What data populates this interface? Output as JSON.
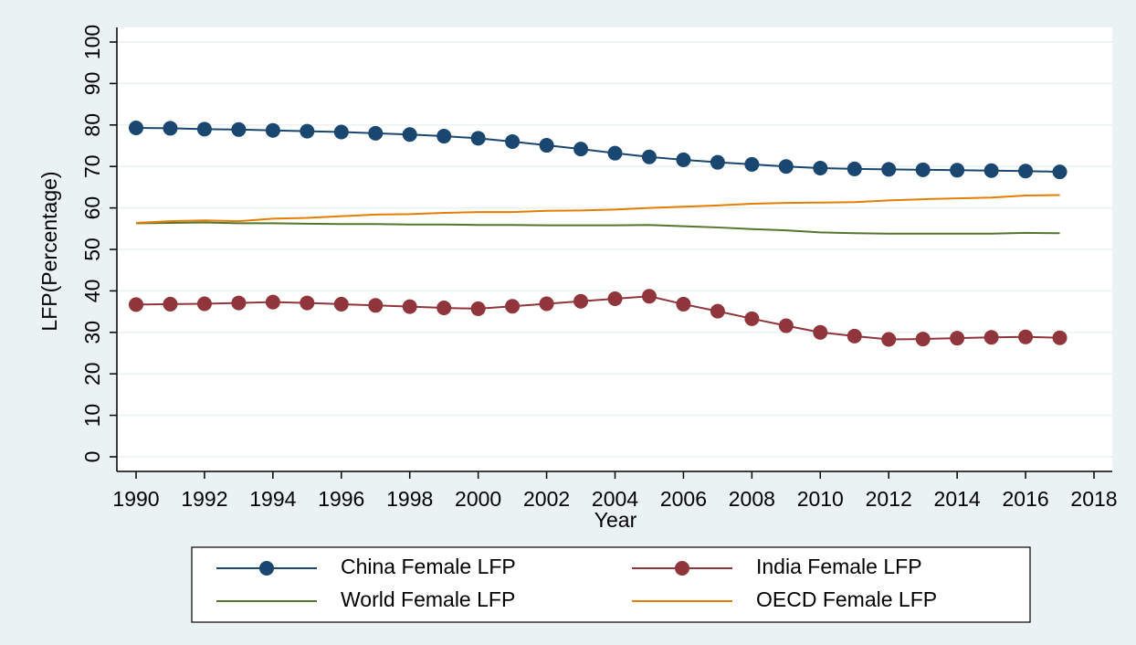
{
  "chart_data": {
    "type": "line",
    "x_label": "Year",
    "y_label": "LFP(Percentage)",
    "x": [
      1990,
      1991,
      1992,
      1993,
      1994,
      1995,
      1996,
      1997,
      1998,
      1999,
      2000,
      2001,
      2002,
      2003,
      2004,
      2005,
      2006,
      2007,
      2008,
      2009,
      2010,
      2011,
      2012,
      2013,
      2014,
      2015,
      2016,
      2017
    ],
    "xlim": [
      1990,
      2018
    ],
    "xticks": [
      1990,
      1992,
      1994,
      1996,
      1998,
      2000,
      2002,
      2004,
      2006,
      2008,
      2010,
      2012,
      2014,
      2016,
      2018
    ],
    "ylim": [
      0,
      100
    ],
    "yticks": [
      0,
      10,
      20,
      30,
      40,
      50,
      60,
      70,
      80,
      90,
      100
    ],
    "grid": true,
    "series": [
      {
        "name": "China Female LFP",
        "color": "#1a476f",
        "marker": "circle",
        "values": [
          79.3,
          79.2,
          79.0,
          78.9,
          78.7,
          78.5,
          78.3,
          78.0,
          77.7,
          77.3,
          76.8,
          76.0,
          75.1,
          74.2,
          73.2,
          72.3,
          71.6,
          71.0,
          70.5,
          70.0,
          69.6,
          69.4,
          69.3,
          69.2,
          69.1,
          69.0,
          68.9,
          68.7
        ]
      },
      {
        "name": "India Female LFP",
        "color": "#90353b",
        "marker": "circle",
        "values": [
          36.7,
          36.8,
          36.9,
          37.1,
          37.3,
          37.1,
          36.8,
          36.5,
          36.2,
          35.9,
          35.7,
          36.3,
          36.9,
          37.5,
          38.1,
          38.7,
          36.8,
          35.1,
          33.3,
          31.6,
          30.0,
          29.1,
          28.3,
          28.4,
          28.6,
          28.8,
          28.9,
          28.7
        ]
      },
      {
        "name": "World Female LFP",
        "color": "#55752f",
        "marker": "none",
        "values": [
          56.3,
          56.4,
          56.5,
          56.3,
          56.3,
          56.2,
          56.1,
          56.1,
          56.0,
          56.0,
          55.9,
          55.9,
          55.8,
          55.8,
          55.8,
          55.9,
          55.6,
          55.3,
          54.9,
          54.6,
          54.1,
          53.9,
          53.8,
          53.8,
          53.8,
          53.8,
          54.0,
          53.9
        ]
      },
      {
        "name": "OECD Female LFP",
        "color": "#e37e00",
        "marker": "none",
        "values": [
          56.4,
          56.8,
          57.0,
          56.8,
          57.4,
          57.6,
          58.0,
          58.4,
          58.5,
          58.8,
          59.0,
          59.0,
          59.3,
          59.4,
          59.6,
          60.0,
          60.3,
          60.6,
          61.0,
          61.2,
          61.3,
          61.4,
          61.8,
          62.1,
          62.3,
          62.5,
          63.0,
          63.1
        ]
      }
    ]
  }
}
